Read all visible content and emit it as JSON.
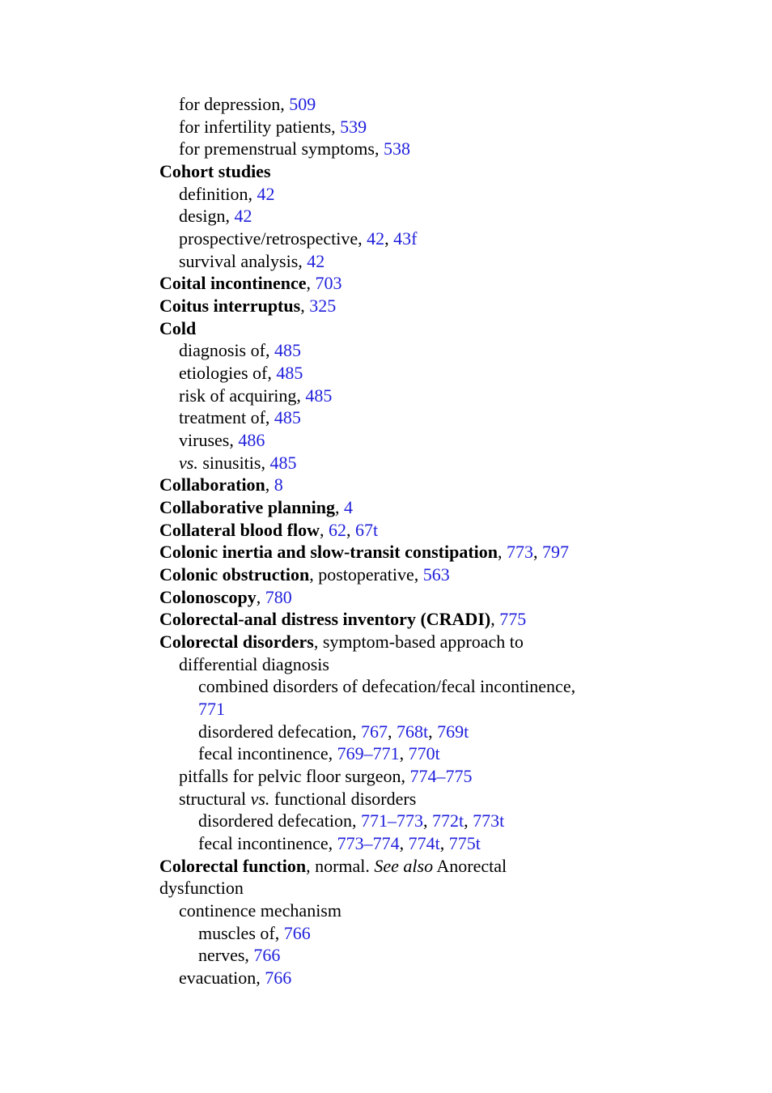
{
  "lines": [
    [
      {
        "text": "for depression, "
      },
      {
        "text": "509",
        "style": "link"
      }
    ],
    [
      {
        "text": "for infertility patients, "
      },
      {
        "text": "539",
        "style": "link"
      }
    ],
    [
      {
        "text": "for premenstrual symptoms, "
      },
      {
        "text": "538",
        "style": "link"
      }
    ],
    [
      {
        "text": "Cohort studies",
        "style": "bold"
      }
    ],
    [
      {
        "text": "definition, "
      },
      {
        "text": "42",
        "style": "link"
      }
    ],
    [
      {
        "text": "design, "
      },
      {
        "text": "42",
        "style": "link"
      }
    ],
    [
      {
        "text": "prospective/retrospective, "
      },
      {
        "text": "42",
        "style": "link"
      },
      {
        "text": ", "
      },
      {
        "text": "43f",
        "style": "link"
      }
    ],
    [
      {
        "text": "survival analysis, "
      },
      {
        "text": "42",
        "style": "link"
      }
    ],
    [
      {
        "text": "Coital incontinence",
        "style": "bold"
      },
      {
        "text": ", "
      },
      {
        "text": "703",
        "style": "link"
      }
    ],
    [
      {
        "text": "Coitus interruptus",
        "style": "bold"
      },
      {
        "text": ", "
      },
      {
        "text": "325",
        "style": "link"
      }
    ],
    [
      {
        "text": "Cold",
        "style": "bold"
      }
    ],
    [
      {
        "text": "diagnosis of, "
      },
      {
        "text": "485",
        "style": "link"
      }
    ],
    [
      {
        "text": "etiologies of, "
      },
      {
        "text": "485",
        "style": "link"
      }
    ],
    [
      {
        "text": "risk of acquiring, "
      },
      {
        "text": "485",
        "style": "link"
      }
    ],
    [
      {
        "text": "treatment of, "
      },
      {
        "text": "485",
        "style": "link"
      }
    ],
    [
      {
        "text": "viruses, "
      },
      {
        "text": "486",
        "style": "link"
      }
    ],
    [
      {
        "text": "vs.",
        "style": "italic"
      },
      {
        "text": " sinusitis, "
      },
      {
        "text": "485",
        "style": "link"
      }
    ],
    [
      {
        "text": "Collaboration",
        "style": "bold"
      },
      {
        "text": ", "
      },
      {
        "text": "8",
        "style": "link"
      }
    ],
    [
      {
        "text": "Collaborative planning",
        "style": "bold"
      },
      {
        "text": ", "
      },
      {
        "text": "4",
        "style": "link"
      }
    ],
    [
      {
        "text": "Collateral blood flow",
        "style": "bold"
      },
      {
        "text": ", "
      },
      {
        "text": "62",
        "style": "link"
      },
      {
        "text": ", "
      },
      {
        "text": "67t",
        "style": "link"
      }
    ],
    [
      {
        "text": "Colonic inertia and slow-transit constipation",
        "style": "bold"
      },
      {
        "text": ", "
      },
      {
        "text": "773",
        "style": "link"
      },
      {
        "text": ", "
      },
      {
        "text": "797",
        "style": "link"
      }
    ],
    [
      {
        "text": "Colonic obstruction",
        "style": "bold"
      },
      {
        "text": ", postoperative, "
      },
      {
        "text": "563",
        "style": "link"
      }
    ],
    [
      {
        "text": "Colonoscopy",
        "style": "bold"
      },
      {
        "text": ", "
      },
      {
        "text": "780",
        "style": "link"
      }
    ],
    [
      {
        "text": "Colorectal-anal distress inventory (CRADI)",
        "style": "bold"
      },
      {
        "text": ", "
      },
      {
        "text": "775",
        "style": "link"
      }
    ],
    [
      {
        "text": "Colorectal disorders",
        "style": "bold"
      },
      {
        "text": ", symptom-based approach to"
      }
    ],
    [
      {
        "text": "differential diagnosis"
      }
    ],
    [
      {
        "text": "combined disorders of defecation/fecal incontinence,"
      }
    ],
    [
      {
        "text": "771",
        "style": "link"
      }
    ],
    [
      {
        "text": "disordered defecation, "
      },
      {
        "text": "767",
        "style": "link"
      },
      {
        "text": ", "
      },
      {
        "text": "768t",
        "style": "link"
      },
      {
        "text": ", "
      },
      {
        "text": "769t",
        "style": "link"
      }
    ],
    [
      {
        "text": "fecal incontinence, "
      },
      {
        "text": "769–771",
        "style": "link"
      },
      {
        "text": ", "
      },
      {
        "text": "770t",
        "style": "link"
      }
    ],
    [
      {
        "text": "pitfalls for pelvic floor surgeon, "
      },
      {
        "text": "774–775",
        "style": "link"
      }
    ],
    [
      {
        "text": "structural "
      },
      {
        "text": "vs.",
        "style": "italic"
      },
      {
        "text": " functional disorders"
      }
    ],
    [
      {
        "text": "disordered defecation, "
      },
      {
        "text": "771–773",
        "style": "link"
      },
      {
        "text": ", "
      },
      {
        "text": "772t",
        "style": "link"
      },
      {
        "text": ", "
      },
      {
        "text": "773t",
        "style": "link"
      }
    ],
    [
      {
        "text": "fecal incontinence, "
      },
      {
        "text": "773–774",
        "style": "link"
      },
      {
        "text": ", "
      },
      {
        "text": "774t",
        "style": "link"
      },
      {
        "text": ", "
      },
      {
        "text": "775t",
        "style": "link"
      }
    ],
    [
      {
        "text": "Colorectal function",
        "style": "bold"
      },
      {
        "text": ", normal. "
      },
      {
        "text": "See also",
        "style": "italic"
      },
      {
        "text": " Anorectal"
      }
    ],
    [
      {
        "text": "dysfunction"
      }
    ],
    [
      {
        "text": "continence mechanism"
      }
    ],
    [
      {
        "text": "muscles of, "
      },
      {
        "text": "766",
        "style": "link"
      }
    ],
    [
      {
        "text": "nerves, "
      },
      {
        "text": "766",
        "style": "link"
      }
    ],
    [
      {
        "text": "evacuation, "
      },
      {
        "text": "766",
        "style": "link"
      }
    ]
  ]
}
